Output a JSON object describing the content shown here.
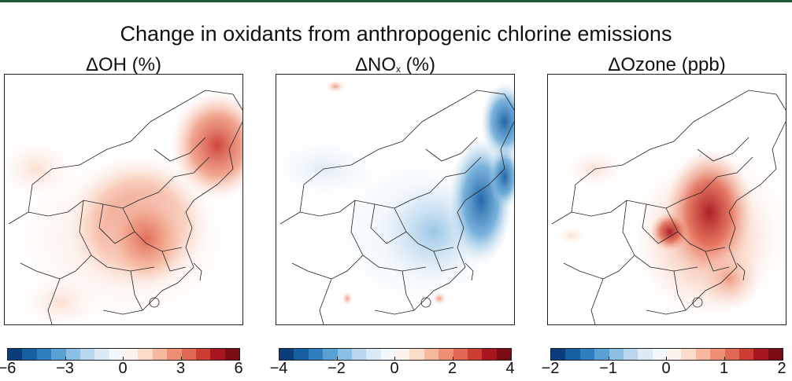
{
  "title": "Change in oxidants from anthropogenic chlorine emissions",
  "panels": [
    {
      "title_main": "ΔOH (%)",
      "scale": "red",
      "colorbar_ticks": [
        "−6",
        "−3",
        "0",
        "3",
        "6"
      ]
    },
    {
      "title_pre": "ΔNO",
      "title_sub": "x",
      "title_post": " (%)",
      "scale": "blue",
      "colorbar_ticks": [
        "−4",
        "−2",
        "0",
        "2",
        "4"
      ]
    },
    {
      "title_main": "ΔOzone (ppb)",
      "scale": "red",
      "colorbar_ticks": [
        "−2",
        "−1",
        "0",
        "1",
        "2"
      ]
    }
  ],
  "colorbar_colors": [
    "#0a3d7a",
    "#175fa3",
    "#2f7fc0",
    "#5aa0d3",
    "#8bbfe3",
    "#b8d7ee",
    "#dceaf6",
    "#f3f8fc",
    "#fdf3ee",
    "#fbdccb",
    "#f6b9a0",
    "#ee8f74",
    "#e06752",
    "#cc3d33",
    "#a8171f",
    "#7a0a14"
  ],
  "colors": {
    "accent_line": "#1f5a3a"
  }
}
